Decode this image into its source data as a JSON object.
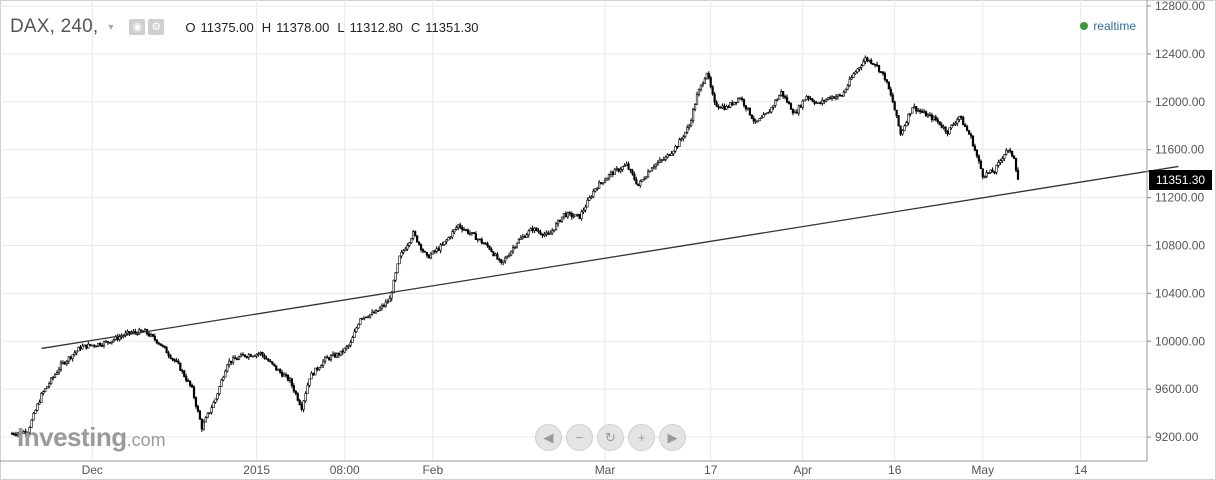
{
  "header": {
    "symbol": "DAX, 240,",
    "ohlc": [
      {
        "key": "O",
        "value": "11375.00"
      },
      {
        "key": "H",
        "value": "11378.00"
      },
      {
        "key": "L",
        "value": "11312.80"
      },
      {
        "key": "C",
        "value": "11351.30"
      }
    ],
    "realtime": "realtime"
  },
  "logo": {
    "main": "Investing",
    "suffix": ".com"
  },
  "nav_buttons": [
    {
      "name": "scroll-left-button",
      "glyph": "◀"
    },
    {
      "name": "zoom-out-button",
      "glyph": "−"
    },
    {
      "name": "reset-button",
      "glyph": "↻"
    },
    {
      "name": "zoom-in-button",
      "glyph": "+"
    },
    {
      "name": "scroll-right-button",
      "glyph": "▶"
    }
  ],
  "last_price": "11351.30",
  "colors": {
    "candle": "#000000",
    "trendline": "#333333",
    "grid": "#e8e8e8",
    "realtime_dot": "#3c9a3c",
    "price_tag_bg": "#000000"
  },
  "chart_data": {
    "type": "line",
    "title": "",
    "xlabel": "",
    "ylabel": "",
    "ylim": [
      9000,
      12850
    ],
    "y_ticks": [
      "12800.00",
      "12400.00",
      "12000.00",
      "11600.00",
      "11200.00",
      "10800.00",
      "10400.00",
      "10000.00",
      "9600.00",
      "9200.00"
    ],
    "y_tick_values": [
      12800,
      12400,
      12000,
      11600,
      11200,
      10800,
      10400,
      10000,
      9600,
      9200
    ],
    "x_ticks": [
      "Dec",
      "2015",
      "08:00",
      "Feb",
      "Mar",
      "17",
      "Apr",
      "16",
      "May",
      "14"
    ],
    "x_tick_bars": [
      41,
      125,
      170,
      215,
      303,
      357,
      404,
      451,
      496,
      546
    ],
    "bar_count": 560,
    "grid": true,
    "trendline": {
      "start": {
        "bar": 10,
        "value": 9940
      },
      "end": {
        "bar": 550,
        "value": 11460
      }
    },
    "series": [
      {
        "values": [
          [
            0,
            9230
          ],
          [
            8,
            9250
          ],
          [
            15,
            9550
          ],
          [
            25,
            9800
          ],
          [
            35,
            9950
          ],
          [
            48,
            9990
          ],
          [
            60,
            10070
          ],
          [
            68,
            10080
          ],
          [
            75,
            9990
          ],
          [
            85,
            9800
          ],
          [
            92,
            9600
          ],
          [
            97,
            9280
          ],
          [
            104,
            9520
          ],
          [
            110,
            9820
          ],
          [
            118,
            9880
          ],
          [
            127,
            9900
          ],
          [
            135,
            9770
          ],
          [
            142,
            9670
          ],
          [
            148,
            9450
          ],
          [
            152,
            9700
          ],
          [
            160,
            9850
          ],
          [
            168,
            9900
          ],
          [
            173,
            9980
          ],
          [
            178,
            10200
          ],
          [
            186,
            10240
          ],
          [
            193,
            10350
          ],
          [
            198,
            10700
          ],
          [
            205,
            10900
          ],
          [
            212,
            10700
          ],
          [
            220,
            10800
          ],
          [
            228,
            10970
          ],
          [
            236,
            10880
          ],
          [
            244,
            10780
          ],
          [
            250,
            10640
          ],
          [
            258,
            10830
          ],
          [
            266,
            10940
          ],
          [
            274,
            10880
          ],
          [
            282,
            11060
          ],
          [
            290,
            11040
          ],
          [
            298,
            11280
          ],
          [
            306,
            11400
          ],
          [
            314,
            11470
          ],
          [
            320,
            11300
          ],
          [
            327,
            11460
          ],
          [
            334,
            11530
          ],
          [
            340,
            11640
          ],
          [
            346,
            11800
          ],
          [
            350,
            12050
          ],
          [
            355,
            12250
          ],
          [
            359,
            11980
          ],
          [
            365,
            11950
          ],
          [
            372,
            12040
          ],
          [
            380,
            11820
          ],
          [
            386,
            11900
          ],
          [
            393,
            12080
          ],
          [
            400,
            11900
          ],
          [
            406,
            12050
          ],
          [
            412,
            11980
          ],
          [
            418,
            12040
          ],
          [
            424,
            12050
          ],
          [
            430,
            12230
          ],
          [
            436,
            12360
          ],
          [
            441,
            12320
          ],
          [
            446,
            12200
          ],
          [
            450,
            12000
          ],
          [
            454,
            11730
          ],
          [
            460,
            11960
          ],
          [
            466,
            11900
          ],
          [
            472,
            11850
          ],
          [
            478,
            11750
          ],
          [
            484,
            11880
          ],
          [
            490,
            11700
          ],
          [
            496,
            11390
          ],
          [
            502,
            11420
          ],
          [
            508,
            11600
          ],
          [
            512,
            11540
          ],
          [
            514,
            11351.3
          ]
        ]
      }
    ]
  }
}
